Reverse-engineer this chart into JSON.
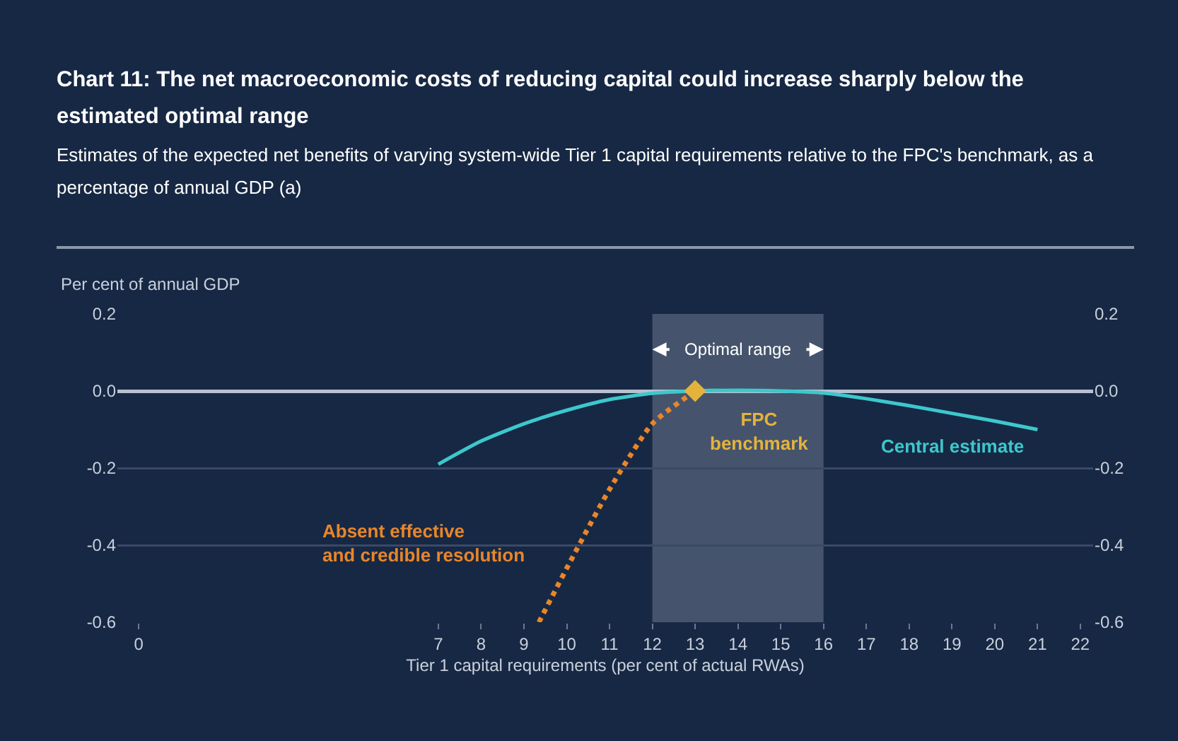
{
  "chart_data": {
    "type": "line",
    "title": "Chart 11: The net macroeconomic costs of reducing capital could increase sharply below the estimated optimal range",
    "subtitle": "Estimates of the expected net benefits of varying system-wide Tier 1 capital requirements relative to the FPC's benchmark, as a percentage of annual GDP (a)",
    "xlabel": "Tier 1 capital requirements (per cent of actual RWAs)",
    "ylabel": "Per cent of annual GDP",
    "xlim": [
      -0.5,
      22.3
    ],
    "xticks": [
      0,
      7,
      8,
      9,
      10,
      11,
      12,
      13,
      14,
      15,
      16,
      17,
      18,
      19,
      20,
      21,
      22
    ],
    "ylim": [
      -0.6,
      0.2
    ],
    "yticks": [
      {
        "value": 0.2,
        "label": "0.2"
      },
      {
        "value": 0,
        "label": "0.0"
      },
      {
        "value": -0.2,
        "label": "-0.2"
      },
      {
        "value": -0.4,
        "label": "-0.4"
      },
      {
        "value": -0.6,
        "label": "-0.6"
      }
    ],
    "y2lim": [
      -0.6,
      0.2
    ],
    "y2ticks": [
      {
        "value": 0.2,
        "label": "0.2"
      },
      {
        "value": 0,
        "label": "0.0"
      },
      {
        "value": -0.2,
        "label": "-0.2"
      },
      {
        "value": -0.4,
        "label": "-0.4"
      },
      {
        "value": -0.6,
        "label": "-0.6"
      }
    ],
    "grid": "y",
    "bands": [
      {
        "axis": "x",
        "from": 12,
        "to": 16,
        "label": "Optimal range",
        "color": "#56637a"
      }
    ],
    "series": [
      {
        "name": "Central estimate",
        "color": "#3cc8cc",
        "line_style": "solid",
        "marker": "none",
        "x": [
          7,
          8,
          9,
          10,
          11,
          12,
          13,
          14,
          15,
          16,
          17,
          18,
          19,
          20,
          21
        ],
        "values": [
          -0.19,
          -0.13,
          -0.085,
          -0.05,
          -0.022,
          -0.006,
          0,
          0.002,
          0,
          -0.005,
          -0.02,
          -0.038,
          -0.058,
          -0.078,
          -0.1
        ]
      },
      {
        "name": "Absent effective and credible resolution",
        "color": "#e8862a",
        "line_style": "dotted",
        "marker": "none",
        "x": [
          9.35,
          10,
          11,
          12,
          13
        ],
        "values": [
          -0.6,
          -0.46,
          -0.255,
          -0.085,
          0
        ]
      },
      {
        "name": "FPC benchmark",
        "type": "scatter",
        "color": "#e3b33c",
        "marker": "diamond",
        "x": [
          13
        ],
        "values": [
          0
        ]
      }
    ]
  }
}
